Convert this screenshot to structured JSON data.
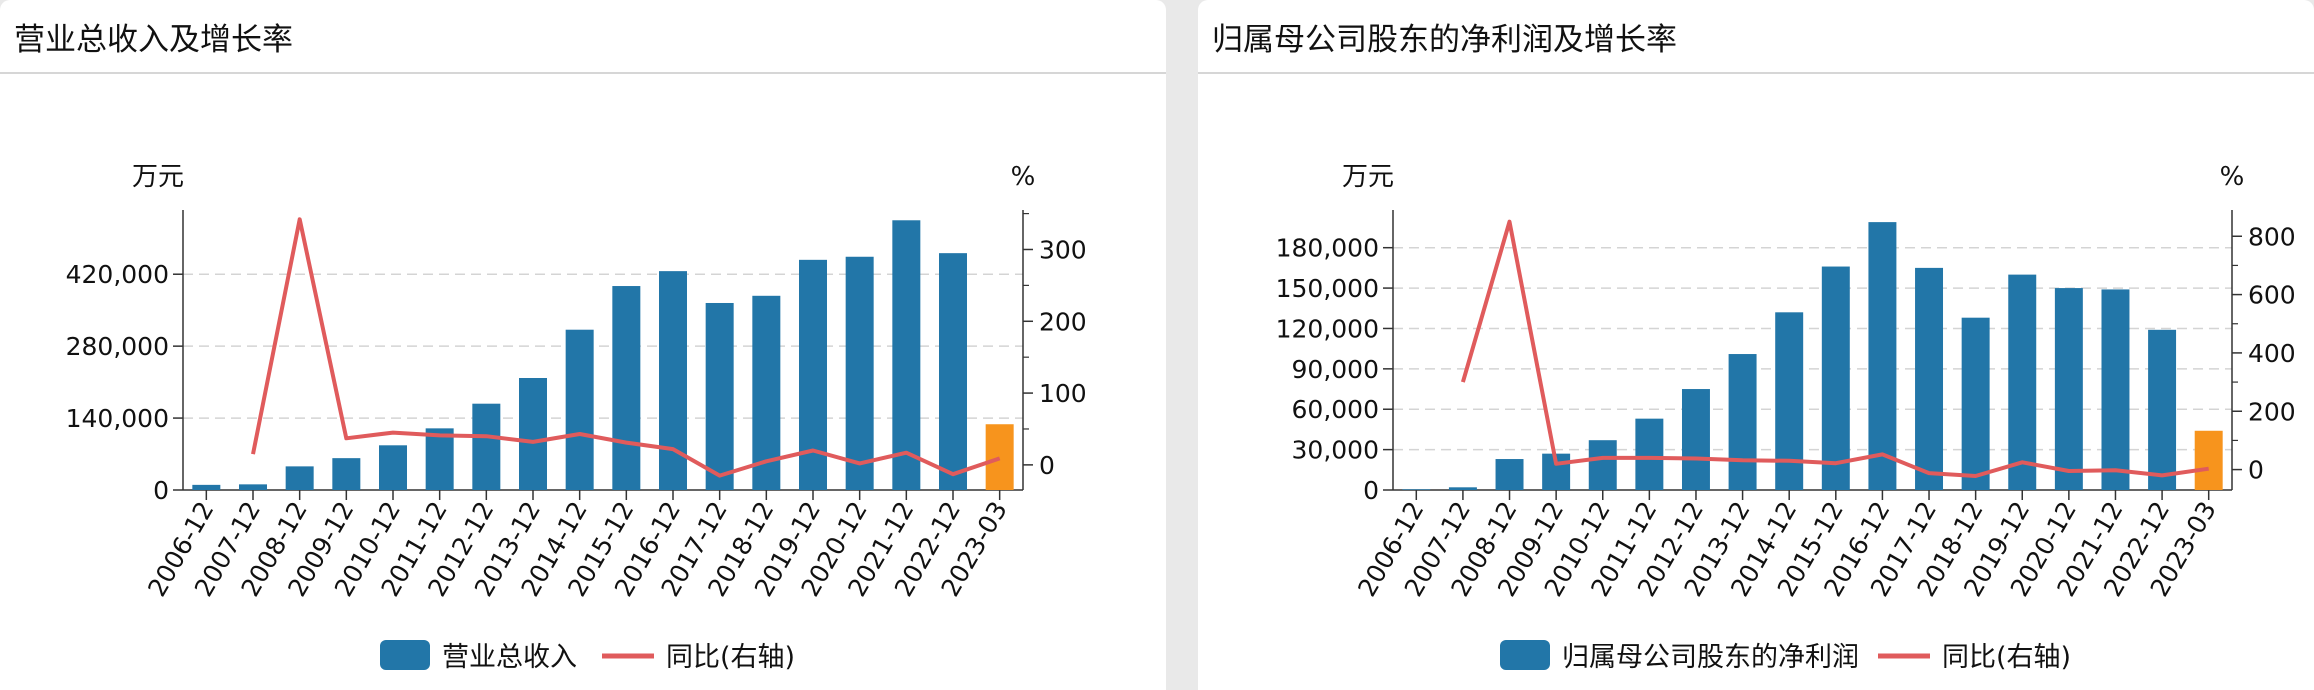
{
  "panels": [
    {
      "title": "营业总收入及增长率",
      "chart_data": {
        "type": "bar+line",
        "categories": [
          "2006-12",
          "2007-12",
          "2008-12",
          "2009-12",
          "2010-12",
          "2011-12",
          "2012-12",
          "2013-12",
          "2014-12",
          "2015-12",
          "2016-12",
          "2017-12",
          "2018-12",
          "2019-12",
          "2020-12",
          "2021-12",
          "2022-12",
          "2023-03"
        ],
        "y_left_unit": "万元",
        "y_right_unit": "%",
        "y_left_ticks": [
          0,
          140000,
          280000,
          420000
        ],
        "y_left_tick_labels": [
          "0",
          "140,000",
          "280,000",
          "420,000"
        ],
        "y_left_range": [
          0,
          545000
        ],
        "y_right_ticks": [
          0,
          100,
          200,
          300
        ],
        "y_right_tick_labels": [
          "0",
          "100",
          "200",
          "300"
        ],
        "y_right_range": [
          -35,
          355
        ],
        "grid": true,
        "legend_position": "bottom",
        "series": [
          {
            "name": "营业总收入",
            "kind": "bar",
            "color": "#2276a8",
            "highlight_last_color": "#f7941d",
            "values": [
              10000,
              11000,
              46000,
              62000,
              87000,
              120000,
              168000,
              218000,
              312000,
              397000,
              426000,
              364000,
              378000,
              448000,
              454000,
              525000,
              461000,
              128000
            ]
          },
          {
            "name": "同比(右轴)",
            "kind": "line",
            "color": "#e05b5c",
            "axis": "right",
            "values": [
              null,
              15,
              342,
              37,
              45,
              41,
              40,
              32,
              43,
              31,
              22,
              -15,
              5,
              20,
              2,
              17,
              -13,
              9
            ]
          }
        ]
      }
    },
    {
      "title": "归属母公司股东的净利润及增长率",
      "chart_data": {
        "type": "bar+line",
        "categories": [
          "2006-12",
          "2007-12",
          "2008-12",
          "2009-12",
          "2010-12",
          "2011-12",
          "2012-12",
          "2013-12",
          "2014-12",
          "2015-12",
          "2016-12",
          "2017-12",
          "2018-12",
          "2019-12",
          "2020-12",
          "2021-12",
          "2022-12",
          "2023-03"
        ],
        "y_left_unit": "万元",
        "y_right_unit": "%",
        "y_left_ticks": [
          0,
          30000,
          60000,
          90000,
          120000,
          150000,
          180000
        ],
        "y_left_tick_labels": [
          "0",
          "30,000",
          "60,000",
          "90,000",
          "120,000",
          "150,000",
          "180,000"
        ],
        "y_left_range": [
          0,
          208000
        ],
        "y_right_ticks": [
          0,
          200,
          400,
          600,
          800
        ],
        "y_right_tick_labels": [
          "0",
          "200",
          "400",
          "600",
          "800"
        ],
        "y_right_range": [
          -70,
          890
        ],
        "grid": true,
        "legend_position": "bottom",
        "series": [
          {
            "name": "归属母公司股东的净利润",
            "kind": "bar",
            "color": "#2276a8",
            "highlight_last_color": "#f7941d",
            "values": [
              500,
              2000,
              23000,
              27000,
              37000,
              53000,
              75000,
              101000,
              132000,
              166000,
              199000,
              165000,
              128000,
              160000,
              150000,
              149000,
              119000,
              44000
            ]
          },
          {
            "name": "同比(右轴)",
            "kind": "line",
            "color": "#e05b5c",
            "axis": "right",
            "values": [
              null,
              300,
              850,
              20,
              40,
              40,
              38,
              32,
              30,
              22,
              52,
              -12,
              -22,
              25,
              -5,
              -2,
              -20,
              3
            ]
          }
        ]
      }
    }
  ]
}
